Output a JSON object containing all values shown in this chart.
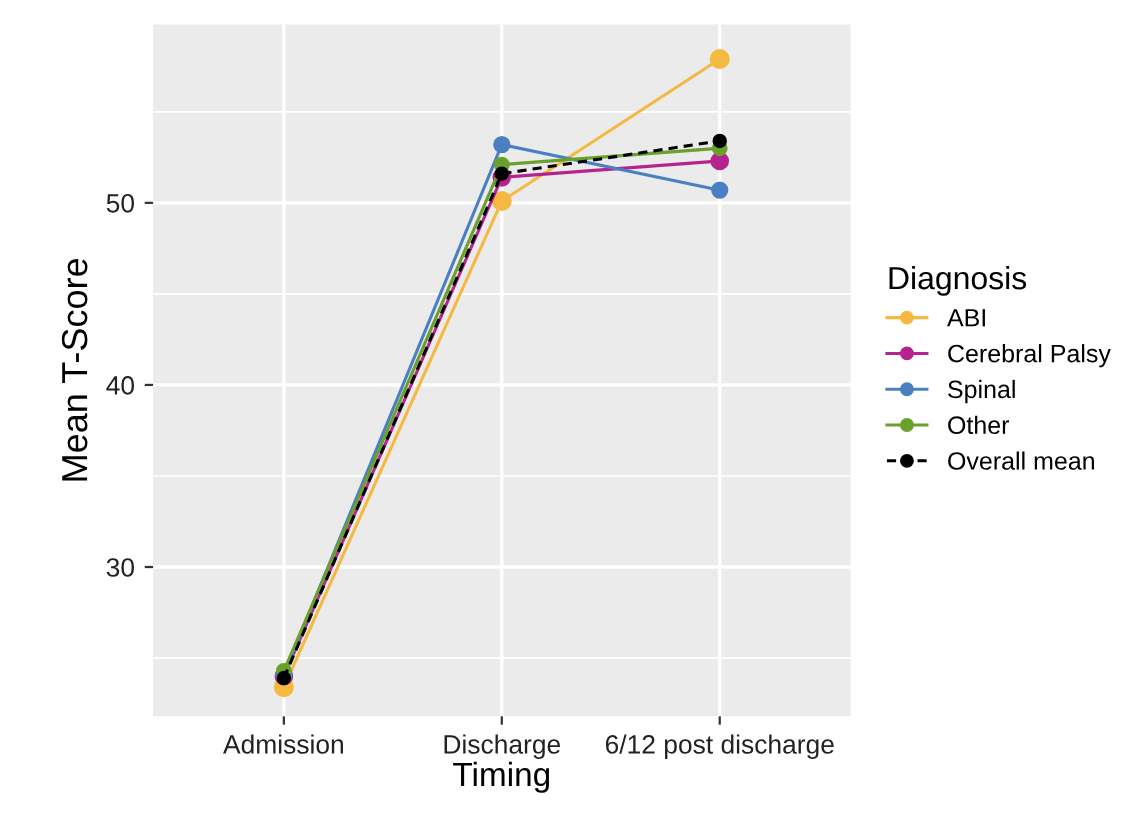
{
  "chart_data": {
    "type": "line",
    "xlabel": "Timing",
    "ylabel": "Mean T-Score",
    "legend_title": "Diagnosis",
    "categories": [
      "Admission",
      "Discharge",
      "6/12 post discharge"
    ],
    "series": [
      {
        "name": "ABI",
        "color": "#f5b942",
        "values": [
          23.4,
          50.1,
          57.9
        ]
      },
      {
        "name": "Cerebral Palsy",
        "color": "#b5238f",
        "values": [
          24.0,
          51.4,
          52.3
        ]
      },
      {
        "name": "Spinal",
        "color": "#4a7fc1",
        "values": [
          24.1,
          53.2,
          50.7
        ]
      },
      {
        "name": "Other",
        "color": "#6aa02c",
        "values": [
          24.3,
          52.1,
          53.0
        ]
      },
      {
        "name": "Overall mean",
        "color": "#000000",
        "values": [
          23.9,
          51.6,
          53.4
        ],
        "line_style": "dashed"
      }
    ],
    "ylim": [
      21.8,
      59.8
    ],
    "yticks": [
      30,
      40,
      50
    ],
    "grid": true,
    "legend": "right",
    "marker": "circle",
    "line_style": "solid"
  }
}
